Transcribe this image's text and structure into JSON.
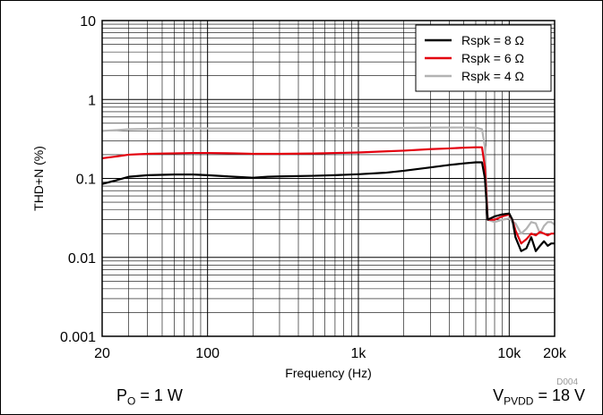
{
  "chart_data": {
    "type": "line",
    "xlabel": "Frequency (Hz)",
    "ylabel": "THD+N (%)",
    "x_scale": "log",
    "y_scale": "log",
    "xlim": [
      20,
      20000
    ],
    "ylim": [
      0.001,
      10
    ],
    "x_ticks": [
      {
        "value": 20,
        "label": "20"
      },
      {
        "value": 100,
        "label": "100"
      },
      {
        "value": 1000,
        "label": "1k"
      },
      {
        "value": 10000,
        "label": "10k"
      },
      {
        "value": 20000,
        "label": "20k"
      }
    ],
    "y_ticks": [
      {
        "value": 10,
        "label": "10"
      },
      {
        "value": 1,
        "label": "1"
      },
      {
        "value": 0.1,
        "label": "0.1"
      },
      {
        "value": 0.01,
        "label": "0.01"
      },
      {
        "value": 0.001,
        "label": "0.001"
      }
    ],
    "grid": true,
    "legend_position": "top-right",
    "series": [
      {
        "name": "Rspk = 8 Ω",
        "color": "#000000",
        "points": [
          [
            20,
            0.085
          ],
          [
            25,
            0.095
          ],
          [
            30,
            0.105
          ],
          [
            40,
            0.11
          ],
          [
            60,
            0.112
          ],
          [
            80,
            0.112
          ],
          [
            100,
            0.11
          ],
          [
            150,
            0.105
          ],
          [
            200,
            0.102
          ],
          [
            250,
            0.105
          ],
          [
            300,
            0.106
          ],
          [
            500,
            0.108
          ],
          [
            700,
            0.11
          ],
          [
            1000,
            0.113
          ],
          [
            1500,
            0.118
          ],
          [
            2000,
            0.125
          ],
          [
            3000,
            0.138
          ],
          [
            4000,
            0.148
          ],
          [
            5000,
            0.155
          ],
          [
            6000,
            0.16
          ],
          [
            6600,
            0.16
          ],
          [
            6900,
            0.1
          ],
          [
            7200,
            0.03
          ],
          [
            8000,
            0.033
          ],
          [
            9000,
            0.035
          ],
          [
            10000,
            0.036
          ],
          [
            10500,
            0.03
          ],
          [
            11000,
            0.018
          ],
          [
            12000,
            0.012
          ],
          [
            13000,
            0.013
          ],
          [
            14000,
            0.018
          ],
          [
            15000,
            0.012
          ],
          [
            16000,
            0.014
          ],
          [
            17000,
            0.016
          ],
          [
            18000,
            0.014
          ],
          [
            19000,
            0.015
          ],
          [
            20000,
            0.015
          ]
        ]
      },
      {
        "name": "Rspk = 6 Ω",
        "color": "#e3000f",
        "points": [
          [
            20,
            0.18
          ],
          [
            25,
            0.19
          ],
          [
            30,
            0.2
          ],
          [
            40,
            0.205
          ],
          [
            60,
            0.208
          ],
          [
            80,
            0.21
          ],
          [
            100,
            0.21
          ],
          [
            150,
            0.208
          ],
          [
            200,
            0.205
          ],
          [
            300,
            0.205
          ],
          [
            500,
            0.207
          ],
          [
            700,
            0.21
          ],
          [
            1000,
            0.213
          ],
          [
            1500,
            0.22
          ],
          [
            2000,
            0.225
          ],
          [
            3000,
            0.235
          ],
          [
            4000,
            0.24
          ],
          [
            5000,
            0.245
          ],
          [
            6000,
            0.248
          ],
          [
            6600,
            0.248
          ],
          [
            6900,
            0.14
          ],
          [
            7200,
            0.03
          ],
          [
            8000,
            0.03
          ],
          [
            9000,
            0.033
          ],
          [
            10000,
            0.035
          ],
          [
            10500,
            0.03
          ],
          [
            11000,
            0.022
          ],
          [
            12000,
            0.015
          ],
          [
            13000,
            0.017
          ],
          [
            14000,
            0.02
          ],
          [
            15000,
            0.019
          ],
          [
            16000,
            0.021
          ],
          [
            17000,
            0.02
          ],
          [
            18000,
            0.019
          ],
          [
            19000,
            0.02
          ],
          [
            20000,
            0.02
          ]
        ]
      },
      {
        "name": "Rspk = 4 Ω",
        "color": "#b3b3b3",
        "points": [
          [
            20,
            0.4
          ],
          [
            25,
            0.41
          ],
          [
            30,
            0.42
          ],
          [
            40,
            0.425
          ],
          [
            60,
            0.43
          ],
          [
            100,
            0.43
          ],
          [
            200,
            0.43
          ],
          [
            500,
            0.432
          ],
          [
            1000,
            0.435
          ],
          [
            2000,
            0.437
          ],
          [
            3000,
            0.44
          ],
          [
            5000,
            0.442
          ],
          [
            6000,
            0.44
          ],
          [
            6600,
            0.42
          ],
          [
            6900,
            0.25
          ],
          [
            7200,
            0.03
          ],
          [
            8000,
            0.028
          ],
          [
            9000,
            0.03
          ],
          [
            10000,
            0.031
          ],
          [
            10500,
            0.028
          ],
          [
            11000,
            0.027
          ],
          [
            12000,
            0.02
          ],
          [
            13000,
            0.023
          ],
          [
            14000,
            0.028
          ],
          [
            15000,
            0.027
          ],
          [
            16000,
            0.02
          ],
          [
            17000,
            0.025
          ],
          [
            18000,
            0.028
          ],
          [
            19000,
            0.028
          ],
          [
            20000,
            0.026
          ]
        ]
      }
    ],
    "watermark": "D004"
  },
  "captions": {
    "left_main": "P",
    "left_sub": "O",
    "left_tail": " = 1 W",
    "right_main": "V",
    "right_sub": "PVDD",
    "right_tail": " = 18 V"
  }
}
